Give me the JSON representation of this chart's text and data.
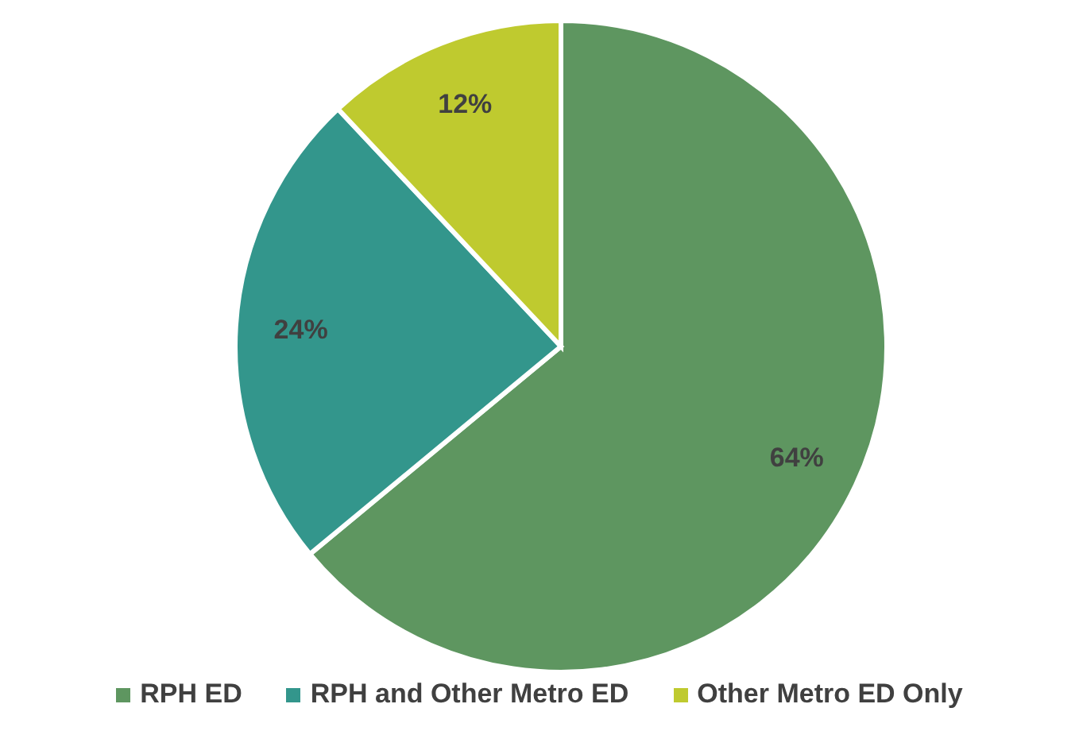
{
  "chart_data": {
    "type": "pie",
    "categories": [
      "RPH ED",
      "RPH and Other Metro ED",
      "Other Metro ED Only"
    ],
    "values": [
      64,
      24,
      12
    ],
    "colors": [
      "#5e9660",
      "#33968c",
      "#bfca2f"
    ],
    "value_labels": [
      "64%",
      "24%",
      "12%"
    ],
    "legend": "bottom"
  }
}
